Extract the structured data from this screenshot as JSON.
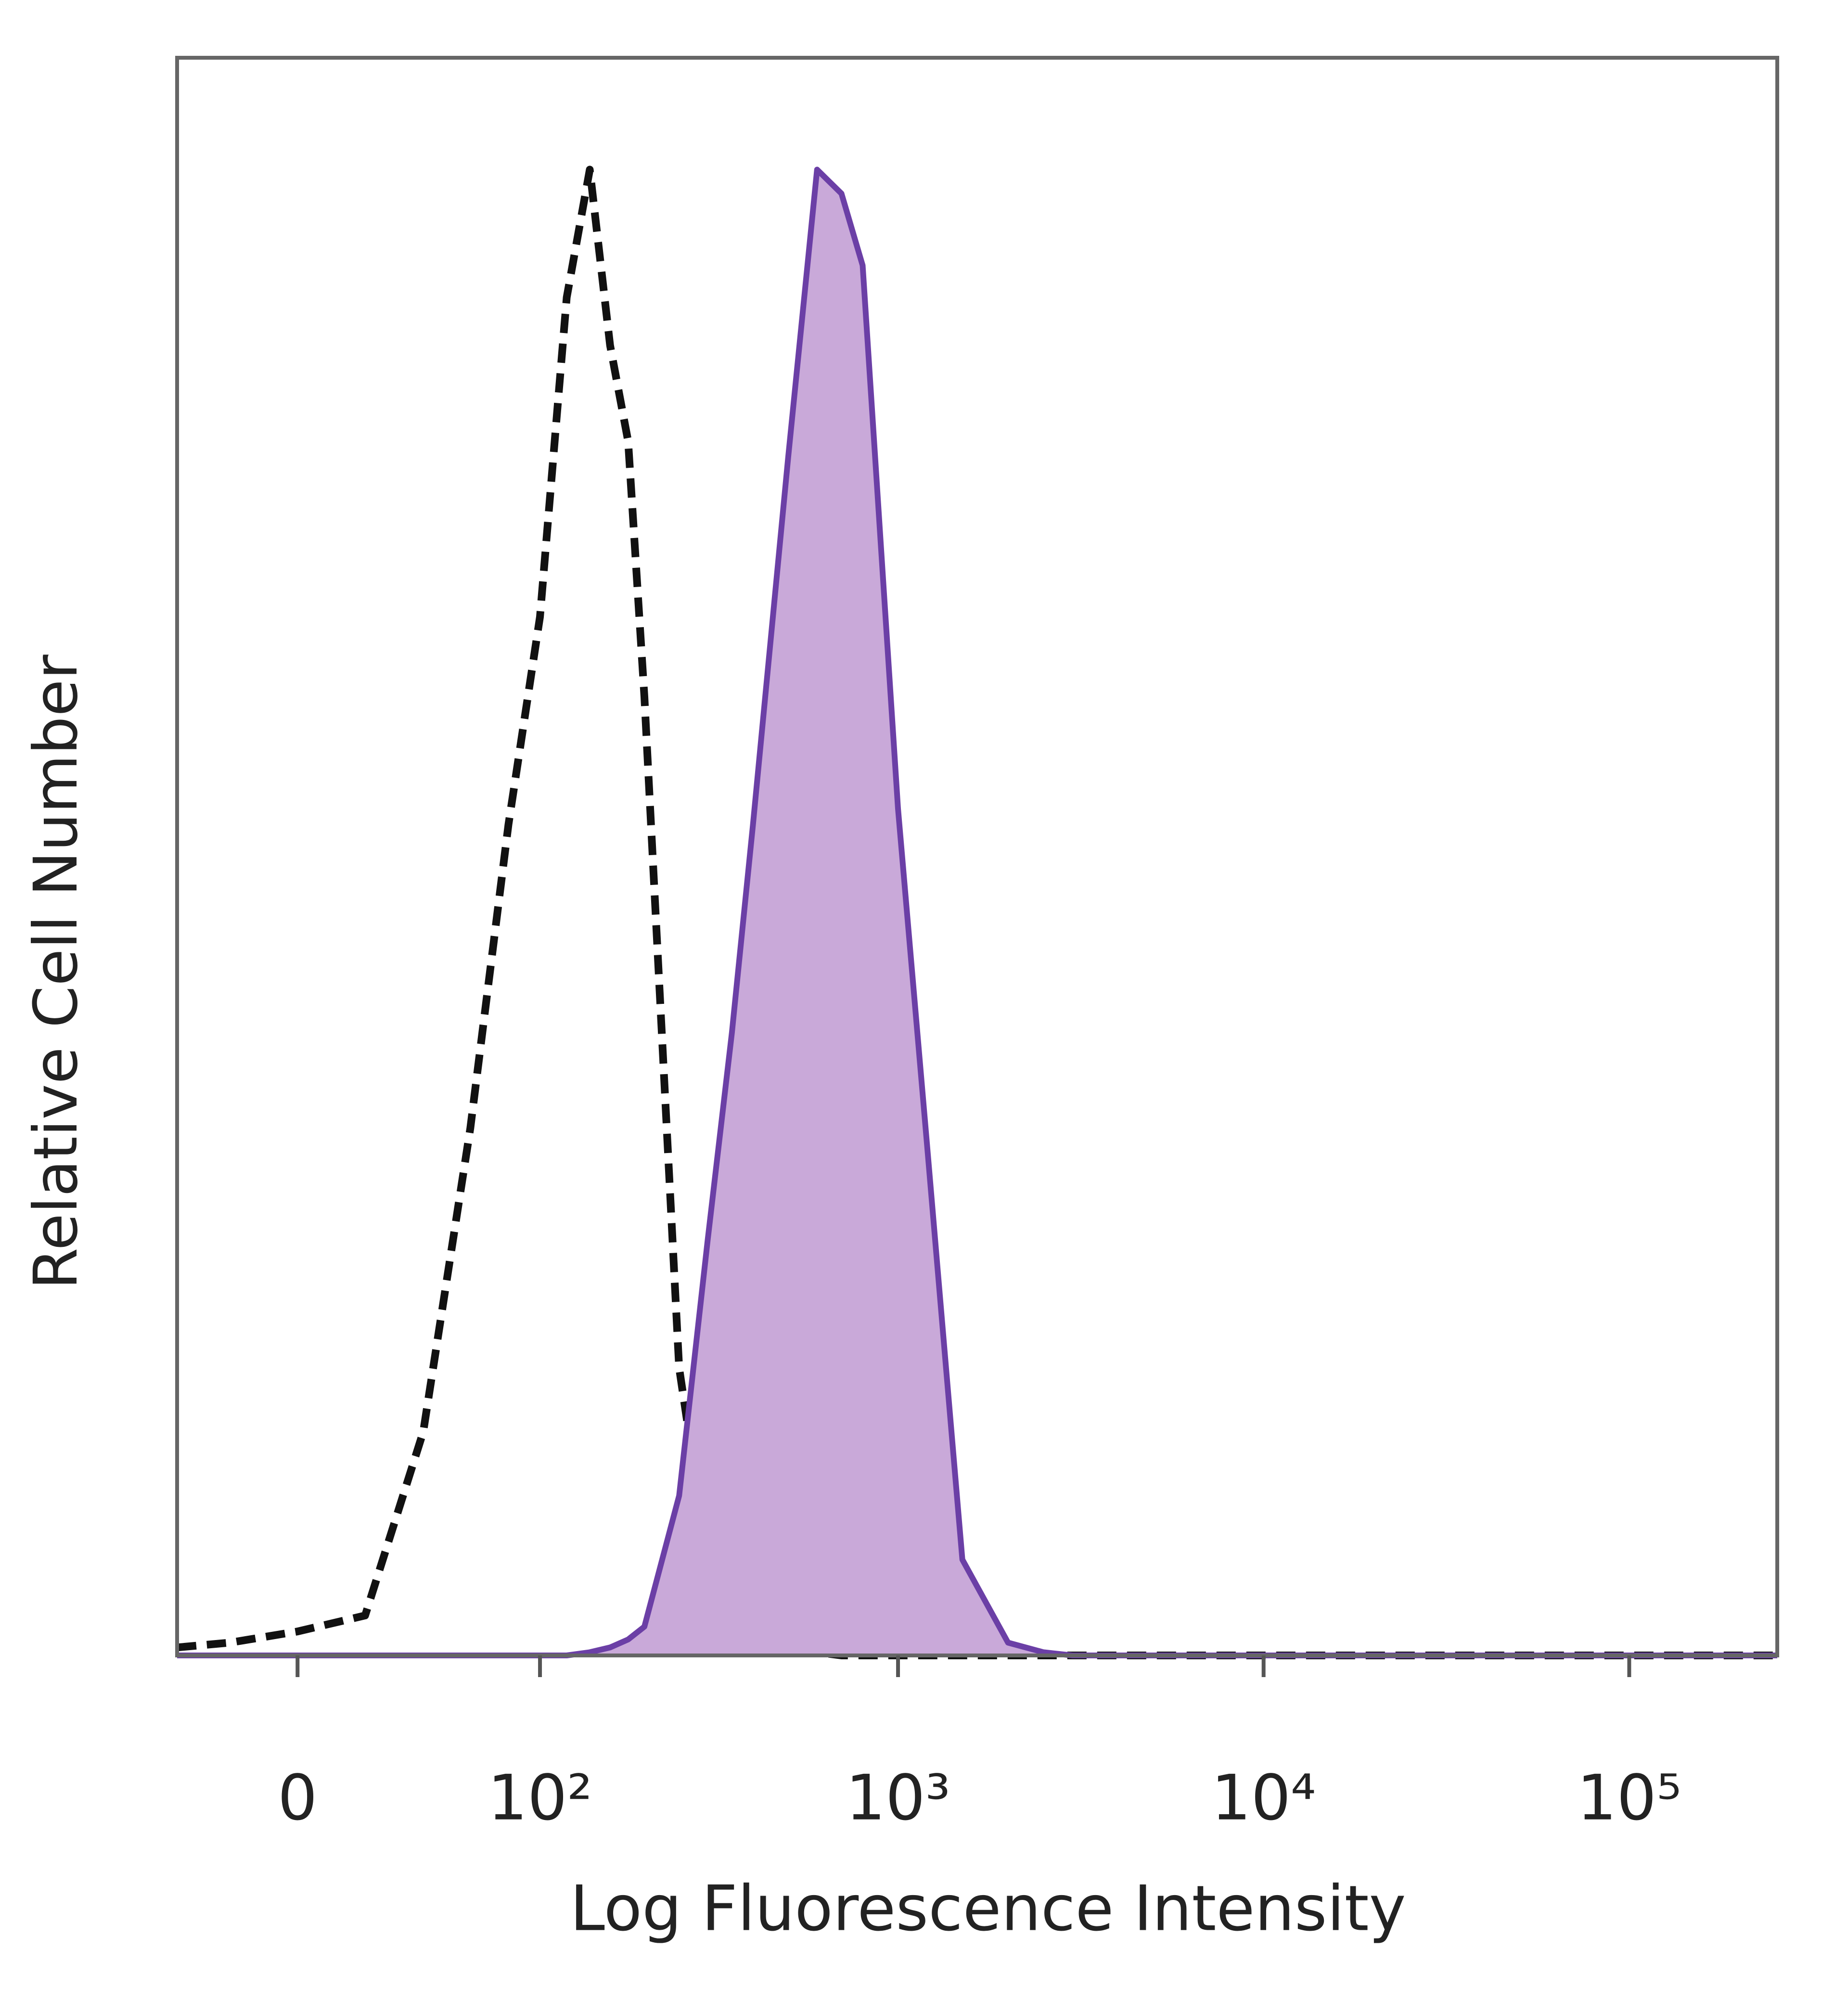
{
  "chart_data": {
    "type": "line",
    "xlabel": "Log Fluorescence Intensity",
    "ylabel": "Relative Cell Number",
    "xscale": "asinh",
    "x": [
      -38,
      -20,
      0,
      20,
      40,
      60,
      80,
      100,
      120,
      140,
      160,
      180,
      200,
      250,
      300,
      350,
      400,
      500,
      600,
      700,
      800,
      1000,
      1200,
      1500,
      2000,
      2500,
      3000,
      5000,
      10000,
      100000,
      254000
    ],
    "xlim": [
      -38,
      254000
    ],
    "xticks": [
      0,
      {
        "value": 100,
        "label": "10²"
      },
      {
        "value": 1000,
        "label": "10³"
      },
      {
        "value": 10000,
        "label": "10⁴"
      },
      {
        "value": 100000,
        "label": "10⁵"
      }
    ],
    "ylim": [
      0,
      100
    ],
    "series": [
      {
        "color": "#111111",
        "dashed": true,
        "filled": false,
        "values": [
          0.5,
          0.8,
          1.5,
          2.5,
          14,
          33,
          52,
          65,
          85,
          93,
          82,
          76,
          60,
          18,
          6,
          2.5,
          1.2,
          0.5,
          0.2,
          0,
          0,
          0,
          0,
          0,
          0,
          0,
          0,
          0,
          0,
          0,
          0
        ]
      },
      {
        "color": "#6b3fa6",
        "fill": "#c9a9d9",
        "dashed": false,
        "filled": true,
        "values": [
          0,
          0,
          0,
          0,
          0,
          0,
          0,
          0,
          0,
          0.2,
          0.5,
          1,
          1.8,
          10,
          26,
          39,
          52,
          75,
          93,
          91.5,
          87,
          53,
          32,
          6,
          0.8,
          0.2,
          0,
          0,
          0,
          0,
          0
        ]
      }
    ]
  }
}
